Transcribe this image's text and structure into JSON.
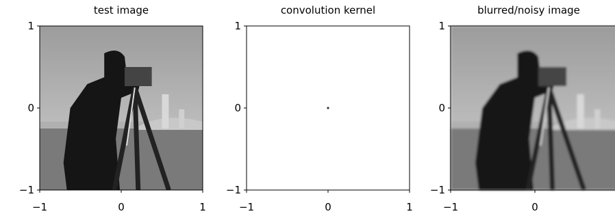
{
  "chart_data": [
    {
      "type": "image",
      "title": "test image",
      "xlim": [
        -1,
        1
      ],
      "ylim": [
        -1,
        1
      ],
      "xticks": [
        {
          "value": -1,
          "label": "−1"
        },
        0,
        1
      ],
      "yticks": [
        {
          "value": -1,
          "label": "−1"
        },
        0,
        1
      ]
    },
    {
      "type": "image",
      "title": "convolution kernel",
      "xlim": [
        -1,
        1
      ],
      "ylim": [
        -1,
        1
      ],
      "xticks": [
        {
          "value": -1,
          "label": "−1"
        },
        0,
        1
      ],
      "yticks": [
        {
          "value": -1,
          "label": "−1"
        },
        0,
        1
      ]
    },
    {
      "type": "image",
      "title": "blurred/noisy image",
      "xlim": [
        -1,
        1
      ],
      "ylim": [
        -1,
        1
      ],
      "xticks": [
        {
          "value": -1,
          "label": "−1"
        },
        0
      ],
      "yticks": [
        {
          "value": -1,
          "label": "−1"
        },
        0,
        1
      ]
    }
  ]
}
